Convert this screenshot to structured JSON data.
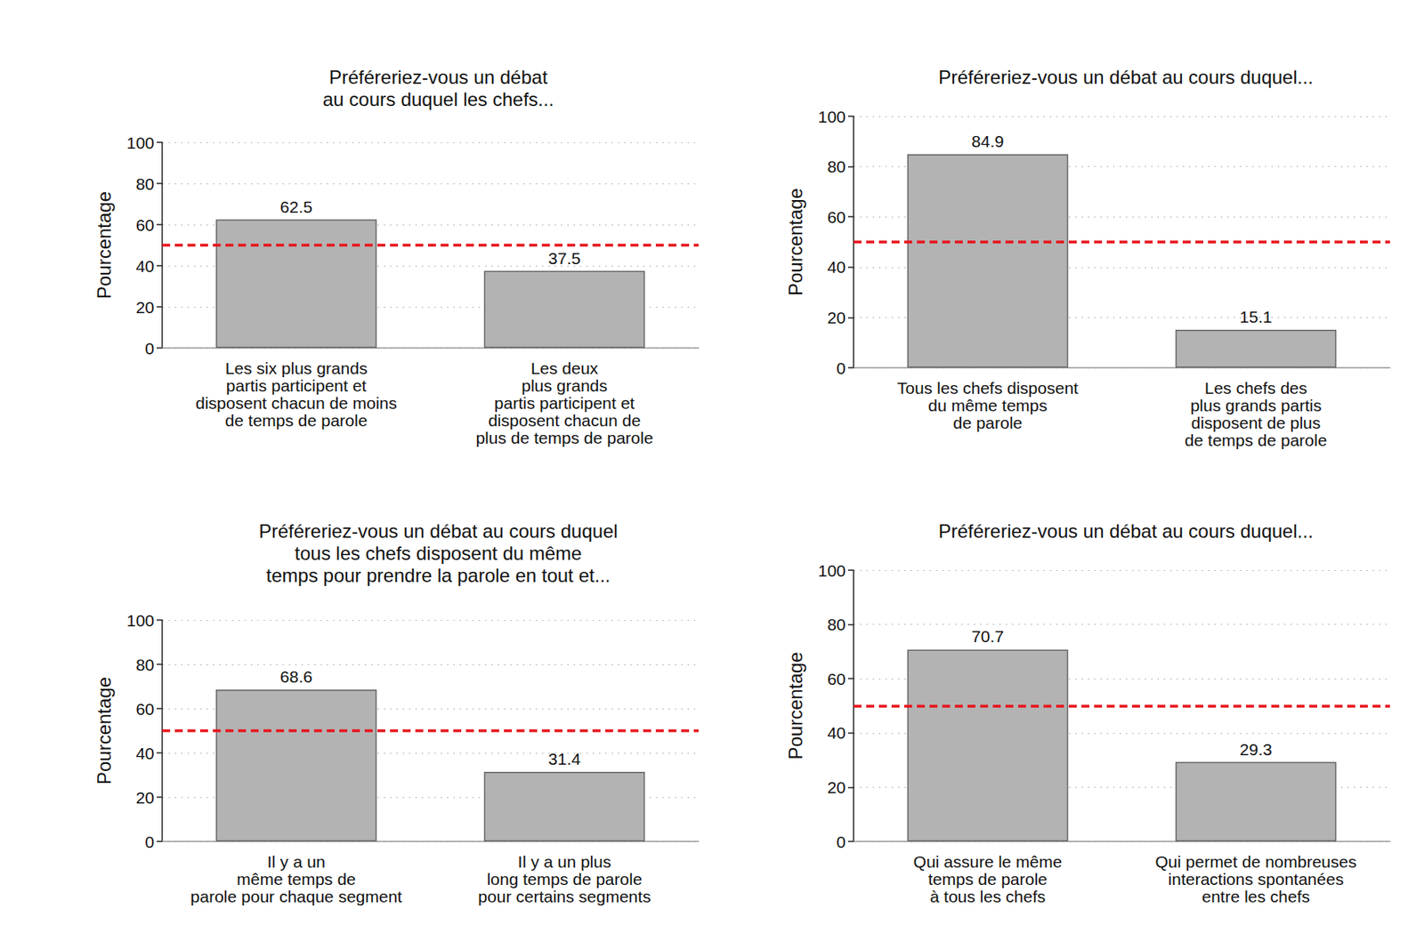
{
  "chart_data": [
    {
      "type": "bar",
      "title": "Préféreriez-vous un débat\nau cours duquel les chefs...",
      "y_label": "Pourcentage",
      "categories": [
        "Les six plus grands\npartis participent et\ndisposent chacun de moins\nde temps de parole",
        "Les deux\nplus grands\npartis participent et\ndisposent chacun de\nplus de temps de parole"
      ],
      "values": [
        62.5,
        37.5
      ],
      "color": "#b3b3b3",
      "ylim": [
        0,
        100
      ],
      "yticks": [
        0,
        20,
        40,
        60,
        80,
        100
      ],
      "grid": true,
      "data_labels": true,
      "reference_line": 50
    },
    {
      "type": "bar",
      "title": "Préféreriez-vous un débat au cours duquel...",
      "y_label": "Pourcentage",
      "categories": [
        "Tous les chefs disposent\ndu même temps\nde parole",
        "Les chefs des\nplus grands partis\ndisposent de plus\nde temps de parole"
      ],
      "values": [
        84.9,
        15.1
      ],
      "color": "#b3b3b3",
      "ylim": [
        0,
        100
      ],
      "yticks": [
        0,
        20,
        40,
        60,
        80,
        100
      ],
      "grid": true,
      "data_labels": true,
      "reference_line": 50
    },
    {
      "type": "bar",
      "title": "Préféreriez-vous un débat au cours duquel\ntous les chefs disposent du même\ntemps pour prendre la parole en tout et...",
      "y_label": "Pourcentage",
      "categories": [
        "Il y a un\nmême temps de\nparole pour chaque segment",
        "Il y a un plus\nlong temps de parole\npour certains segments"
      ],
      "values": [
        68.6,
        31.4
      ],
      "color": "#b3b3b3",
      "ylim": [
        0,
        100
      ],
      "yticks": [
        0,
        20,
        40,
        60,
        80,
        100
      ],
      "grid": true,
      "data_labels": true,
      "reference_line": 50
    },
    {
      "type": "bar",
      "title": "Préféreriez-vous un débat au cours duquel...",
      "y_label": "Pourcentage",
      "categories": [
        "Qui assure le même\ntemps de parole\nà tous les chefs",
        "Qui permet de nombreuses\ninteractions spontanées\nentre les chefs"
      ],
      "values": [
        70.7,
        29.3
      ],
      "color": "#b3b3b3",
      "ylim": [
        0,
        100
      ],
      "yticks": [
        0,
        20,
        40,
        60,
        80,
        100
      ],
      "grid": true,
      "data_labels": true,
      "reference_line": 50
    }
  ]
}
